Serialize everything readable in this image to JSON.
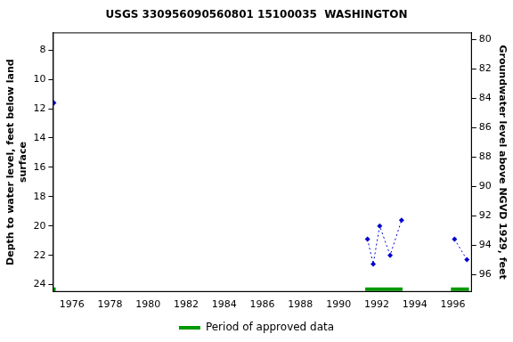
{
  "chart_data": {
    "type": "line",
    "title": "USGS 330956090560801 15100035  WASHINGTON",
    "y_label": [
      "Depth to water level, feet below land",
      "surface"
    ],
    "y2_label": "Groundwater level above NGVD 1929, feet",
    "x": [
      1975.05,
      null,
      1991.52,
      1991.82,
      1992.16,
      1992.71,
      1993.31,
      null,
      1996.09,
      1996.74
    ],
    "series": [
      {
        "color": "#0000cc",
        "marker": "diamond",
        "line_style": "dotted",
        "values": [
          11.6,
          null,
          20.9,
          22.6,
          20.0,
          22.0,
          19.6,
          null,
          20.9,
          22.3
        ]
      },
      {
        "name": "Period of approved data",
        "color": "#009900",
        "periods": [
          [
            1975.0,
            1975.15
          ],
          [
            1991.4,
            1993.36
          ],
          [
            1995.9,
            1996.85
          ]
        ]
      }
    ],
    "xlim": [
      1975,
      1997
    ],
    "xticks": [
      1976,
      1978,
      1980,
      1982,
      1984,
      1986,
      1988,
      1990,
      1992,
      1994,
      1996
    ],
    "ylim": [
      6.8,
      24.5
    ],
    "yticks": [
      8,
      10,
      12,
      14,
      16,
      18,
      20,
      22,
      24
    ],
    "y2lim": [
      97.2,
      79.5
    ],
    "y2ticks": [
      80,
      82,
      84,
      86,
      88,
      90,
      92,
      94,
      96
    ],
    "grid": false,
    "legend": "bottom"
  }
}
